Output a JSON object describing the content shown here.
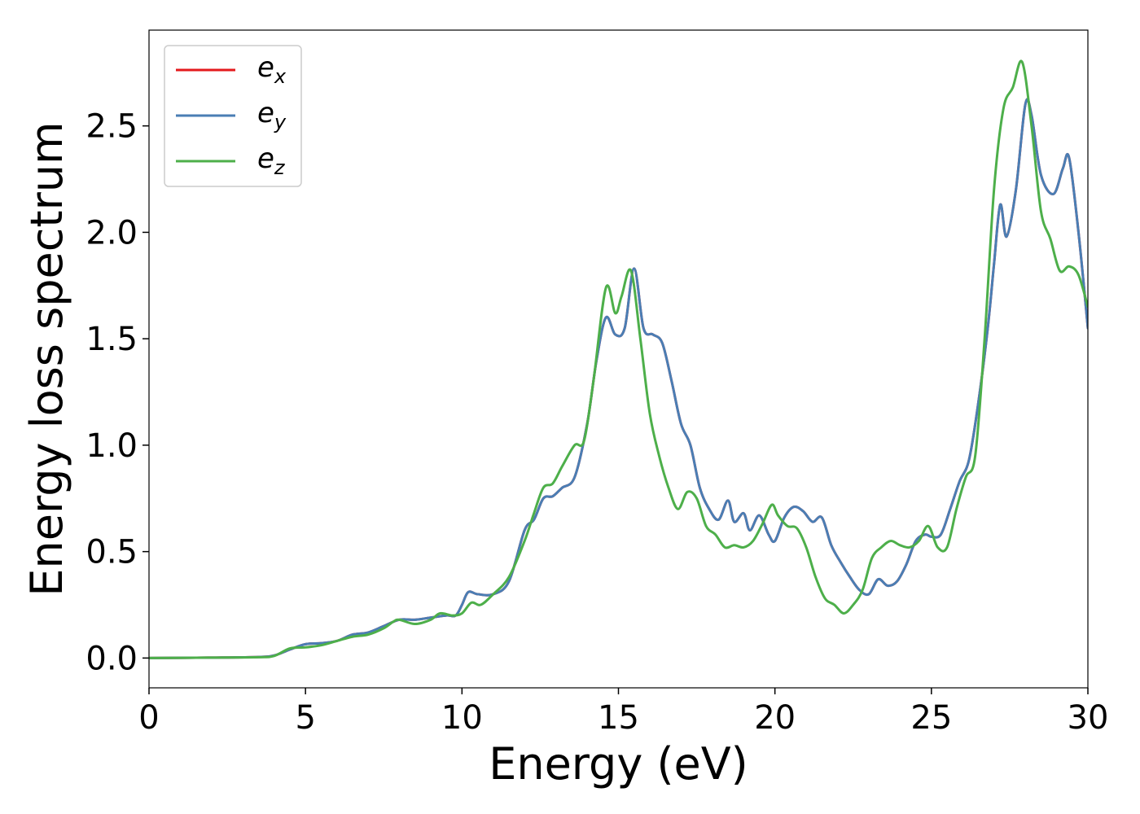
{
  "chart_data": {
    "type": "line",
    "xlabel": "Energy (eV)",
    "ylabel": "Energy loss spectrum",
    "xlim": [
      0,
      30
    ],
    "ylim": [
      -0.14,
      2.95
    ],
    "xticks": [
      0,
      5,
      10,
      15,
      20,
      25,
      30
    ],
    "xtick_labels": [
      "0",
      "5",
      "10",
      "15",
      "20",
      "25",
      "30"
    ],
    "yticks": [
      0,
      0.5,
      1,
      1.5,
      2,
      2.5
    ],
    "ytick_labels": [
      "0.0",
      "0.5",
      "1.0",
      "1.5",
      "2.0",
      "2.5"
    ],
    "grid": false,
    "legend_position": "top-left",
    "series": [
      {
        "name": "e_x",
        "legend_base": "e",
        "legend_sub": "x",
        "color": "#e41a1c",
        "x": [
          0,
          2,
          3.5,
          4,
          4.5,
          5,
          5.5,
          6,
          6.5,
          7,
          7.5,
          8,
          8.5,
          9,
          9.5,
          9.8,
          10,
          10.2,
          10.5,
          11,
          11.5,
          12,
          12.3,
          12.6,
          12.9,
          13.2,
          13.6,
          14,
          14.3,
          14.6,
          14.9,
          15.2,
          15.5,
          15.8,
          16.1,
          16.4,
          16.7,
          17,
          17.3,
          17.6,
          17.9,
          18.2,
          18.5,
          18.7,
          19,
          19.2,
          19.5,
          19.8,
          20,
          20.3,
          20.6,
          20.9,
          21.2,
          21.5,
          21.8,
          22.1,
          22.4,
          22.7,
          23,
          23.3,
          23.6,
          23.9,
          24.2,
          24.5,
          24.8,
          25,
          25.3,
          25.6,
          25.9,
          26.2,
          26.5,
          26.8,
          27,
          27.2,
          27.4,
          27.7,
          28,
          28.2,
          28.5,
          28.9,
          29.2,
          29.4,
          29.7,
          30
        ],
        "y": [
          0,
          0.002,
          0.005,
          0.012,
          0.04,
          0.065,
          0.07,
          0.08,
          0.11,
          0.12,
          0.15,
          0.18,
          0.18,
          0.19,
          0.2,
          0.2,
          0.25,
          0.31,
          0.3,
          0.3,
          0.36,
          0.6,
          0.65,
          0.75,
          0.76,
          0.8,
          0.85,
          1.1,
          1.4,
          1.6,
          1.52,
          1.55,
          1.83,
          1.55,
          1.52,
          1.48,
          1.3,
          1.1,
          1.0,
          0.8,
          0.7,
          0.65,
          0.74,
          0.64,
          0.68,
          0.6,
          0.67,
          0.58,
          0.55,
          0.66,
          0.71,
          0.69,
          0.64,
          0.66,
          0.53,
          0.45,
          0.38,
          0.32,
          0.3,
          0.37,
          0.34,
          0.36,
          0.44,
          0.55,
          0.58,
          0.57,
          0.58,
          0.7,
          0.83,
          0.93,
          1.2,
          1.55,
          1.85,
          2.13,
          1.98,
          2.2,
          2.6,
          2.55,
          2.27,
          2.18,
          2.3,
          2.35,
          2.0,
          1.55
        ]
      },
      {
        "name": "e_y",
        "legend_base": "e",
        "legend_sub": "y",
        "color": "#4a7eb4",
        "x": [
          0,
          2,
          3.5,
          4,
          4.5,
          5,
          5.5,
          6,
          6.5,
          7,
          7.5,
          8,
          8.5,
          9,
          9.5,
          9.8,
          10,
          10.2,
          10.5,
          11,
          11.5,
          12,
          12.3,
          12.6,
          12.9,
          13.2,
          13.6,
          14,
          14.3,
          14.6,
          14.9,
          15.2,
          15.5,
          15.8,
          16.1,
          16.4,
          16.7,
          17,
          17.3,
          17.6,
          17.9,
          18.2,
          18.5,
          18.7,
          19,
          19.2,
          19.5,
          19.8,
          20,
          20.3,
          20.6,
          20.9,
          21.2,
          21.5,
          21.8,
          22.1,
          22.4,
          22.7,
          23,
          23.3,
          23.6,
          23.9,
          24.2,
          24.5,
          24.8,
          25,
          25.3,
          25.6,
          25.9,
          26.2,
          26.5,
          26.8,
          27,
          27.2,
          27.4,
          27.7,
          28,
          28.2,
          28.5,
          28.9,
          29.2,
          29.4,
          29.7,
          30
        ],
        "y": [
          0,
          0.002,
          0.005,
          0.012,
          0.04,
          0.065,
          0.07,
          0.08,
          0.11,
          0.12,
          0.15,
          0.18,
          0.18,
          0.19,
          0.2,
          0.2,
          0.25,
          0.31,
          0.3,
          0.3,
          0.36,
          0.6,
          0.65,
          0.75,
          0.76,
          0.8,
          0.85,
          1.1,
          1.4,
          1.6,
          1.52,
          1.55,
          1.83,
          1.55,
          1.52,
          1.48,
          1.3,
          1.1,
          1.0,
          0.8,
          0.7,
          0.65,
          0.74,
          0.64,
          0.68,
          0.6,
          0.67,
          0.58,
          0.55,
          0.66,
          0.71,
          0.69,
          0.64,
          0.66,
          0.53,
          0.45,
          0.38,
          0.32,
          0.3,
          0.37,
          0.34,
          0.36,
          0.44,
          0.55,
          0.58,
          0.57,
          0.58,
          0.7,
          0.83,
          0.93,
          1.2,
          1.55,
          1.85,
          2.13,
          1.98,
          2.2,
          2.6,
          2.55,
          2.27,
          2.18,
          2.3,
          2.35,
          2.0,
          1.55
        ]
      },
      {
        "name": "e_z",
        "legend_base": "e",
        "legend_sub": "z",
        "color": "#4daf4a",
        "x": [
          0,
          2,
          3.5,
          4,
          4.5,
          5,
          5.5,
          6,
          6.5,
          7,
          7.5,
          7.8,
          8,
          8.5,
          9,
          9.3,
          9.7,
          10,
          10.3,
          10.6,
          11,
          11.5,
          12,
          12.3,
          12.6,
          12.9,
          13.2,
          13.6,
          13.9,
          14.2,
          14.6,
          14.9,
          15.1,
          15.4,
          15.7,
          16,
          16.3,
          16.6,
          16.9,
          17.2,
          17.5,
          17.8,
          18.1,
          18.4,
          18.7,
          19,
          19.3,
          19.6,
          19.9,
          20.1,
          20.4,
          20.7,
          21,
          21.3,
          21.6,
          21.9,
          22.2,
          22.5,
          22.8,
          23.1,
          23.4,
          23.7,
          24,
          24.3,
          24.6,
          24.9,
          25.2,
          25.5,
          25.8,
          26.1,
          26.4,
          26.7,
          27,
          27.3,
          27.6,
          27.9,
          28.2,
          28.5,
          28.8,
          29.1,
          29.4,
          29.7,
          30
        ],
        "y": [
          0,
          0.002,
          0.004,
          0.01,
          0.045,
          0.05,
          0.06,
          0.08,
          0.1,
          0.11,
          0.14,
          0.17,
          0.18,
          0.16,
          0.18,
          0.21,
          0.2,
          0.21,
          0.26,
          0.25,
          0.3,
          0.38,
          0.55,
          0.68,
          0.8,
          0.82,
          0.9,
          1.0,
          1.02,
          1.3,
          1.74,
          1.62,
          1.7,
          1.82,
          1.5,
          1.15,
          0.95,
          0.8,
          0.7,
          0.78,
          0.75,
          0.62,
          0.58,
          0.52,
          0.53,
          0.52,
          0.55,
          0.63,
          0.72,
          0.67,
          0.62,
          0.61,
          0.52,
          0.38,
          0.28,
          0.25,
          0.21,
          0.25,
          0.32,
          0.47,
          0.52,
          0.55,
          0.53,
          0.52,
          0.55,
          0.62,
          0.52,
          0.52,
          0.7,
          0.85,
          0.95,
          1.5,
          2.2,
          2.58,
          2.68,
          2.8,
          2.5,
          2.1,
          1.97,
          1.82,
          1.84,
          1.8,
          1.65
        ]
      }
    ]
  }
}
